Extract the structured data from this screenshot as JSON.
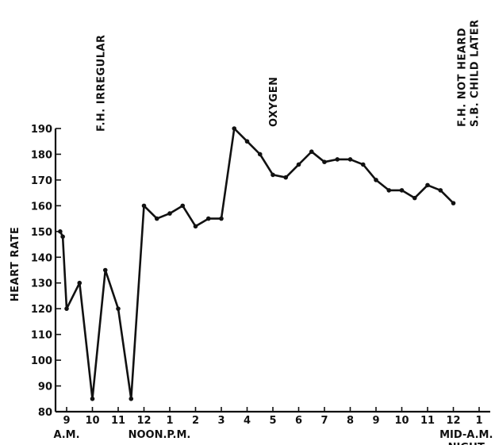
{
  "chart_data": {
    "type": "line",
    "title": "",
    "ylabel": "HEART RATE",
    "xlabel": "",
    "ylim": [
      80,
      190
    ],
    "y_ticks": [
      80,
      90,
      100,
      110,
      120,
      130,
      140,
      150,
      160,
      170,
      180,
      190
    ],
    "x_range": [
      8.65,
      25.6
    ],
    "x_ticks": [
      {
        "x": 9,
        "label": "9"
      },
      {
        "x": 10,
        "label": "10"
      },
      {
        "x": 11,
        "label": "11"
      },
      {
        "x": 12,
        "label": "12"
      },
      {
        "x": 13,
        "label": "1"
      },
      {
        "x": 14,
        "label": "2"
      },
      {
        "x": 15,
        "label": "3"
      },
      {
        "x": 16,
        "label": "4"
      },
      {
        "x": 17,
        "label": "5"
      },
      {
        "x": 18,
        "label": "6"
      },
      {
        "x": 19,
        "label": "7"
      },
      {
        "x": 20,
        "label": "8"
      },
      {
        "x": 21,
        "label": "9"
      },
      {
        "x": 22,
        "label": "10"
      },
      {
        "x": 23,
        "label": "11"
      },
      {
        "x": 24,
        "label": "12"
      },
      {
        "x": 25,
        "label": "1"
      }
    ],
    "x_sublabels": [
      {
        "x": 9,
        "label": "A.M."
      },
      {
        "x": 12.6,
        "label": "NOON.P.M."
      },
      {
        "x": 24.5,
        "label": "MID-A.M."
      },
      {
        "x": 24.5,
        "label": "NIGHT"
      }
    ],
    "annotations": [
      {
        "x": 10.3,
        "label": "F.H. IRREGULAR"
      },
      {
        "x": 17.0,
        "label": "OXYGEN"
      },
      {
        "x": 24.3,
        "label": "F.H.  NOT  HEARD"
      },
      {
        "x": 24.8,
        "label": "S.B. CHILD  LATER"
      }
    ],
    "series": [
      {
        "points": [
          [
            8.75,
            150
          ],
          [
            8.85,
            148
          ],
          [
            9.0,
            120
          ],
          [
            9.5,
            130
          ],
          [
            10.0,
            85
          ],
          [
            10.5,
            135
          ],
          [
            11.0,
            120
          ],
          [
            11.5,
            85
          ],
          [
            12.0,
            160
          ],
          [
            12.5,
            155
          ],
          [
            13.0,
            157
          ],
          [
            13.5,
            160
          ],
          [
            14.0,
            152
          ],
          [
            14.5,
            155
          ],
          [
            15.0,
            155
          ],
          [
            15.5,
            190
          ],
          [
            16.0,
            185
          ],
          [
            16.5,
            180
          ],
          [
            17.0,
            172
          ],
          [
            17.5,
            171
          ],
          [
            18.0,
            176
          ],
          [
            18.5,
            181
          ],
          [
            19.0,
            177
          ],
          [
            19.5,
            178
          ],
          [
            20.0,
            178
          ],
          [
            20.5,
            176
          ],
          [
            21.0,
            170
          ],
          [
            21.5,
            166
          ],
          [
            22.0,
            166
          ],
          [
            22.5,
            163
          ],
          [
            23.0,
            168
          ],
          [
            23.5,
            166
          ],
          [
            24.0,
            161
          ]
        ]
      }
    ]
  }
}
